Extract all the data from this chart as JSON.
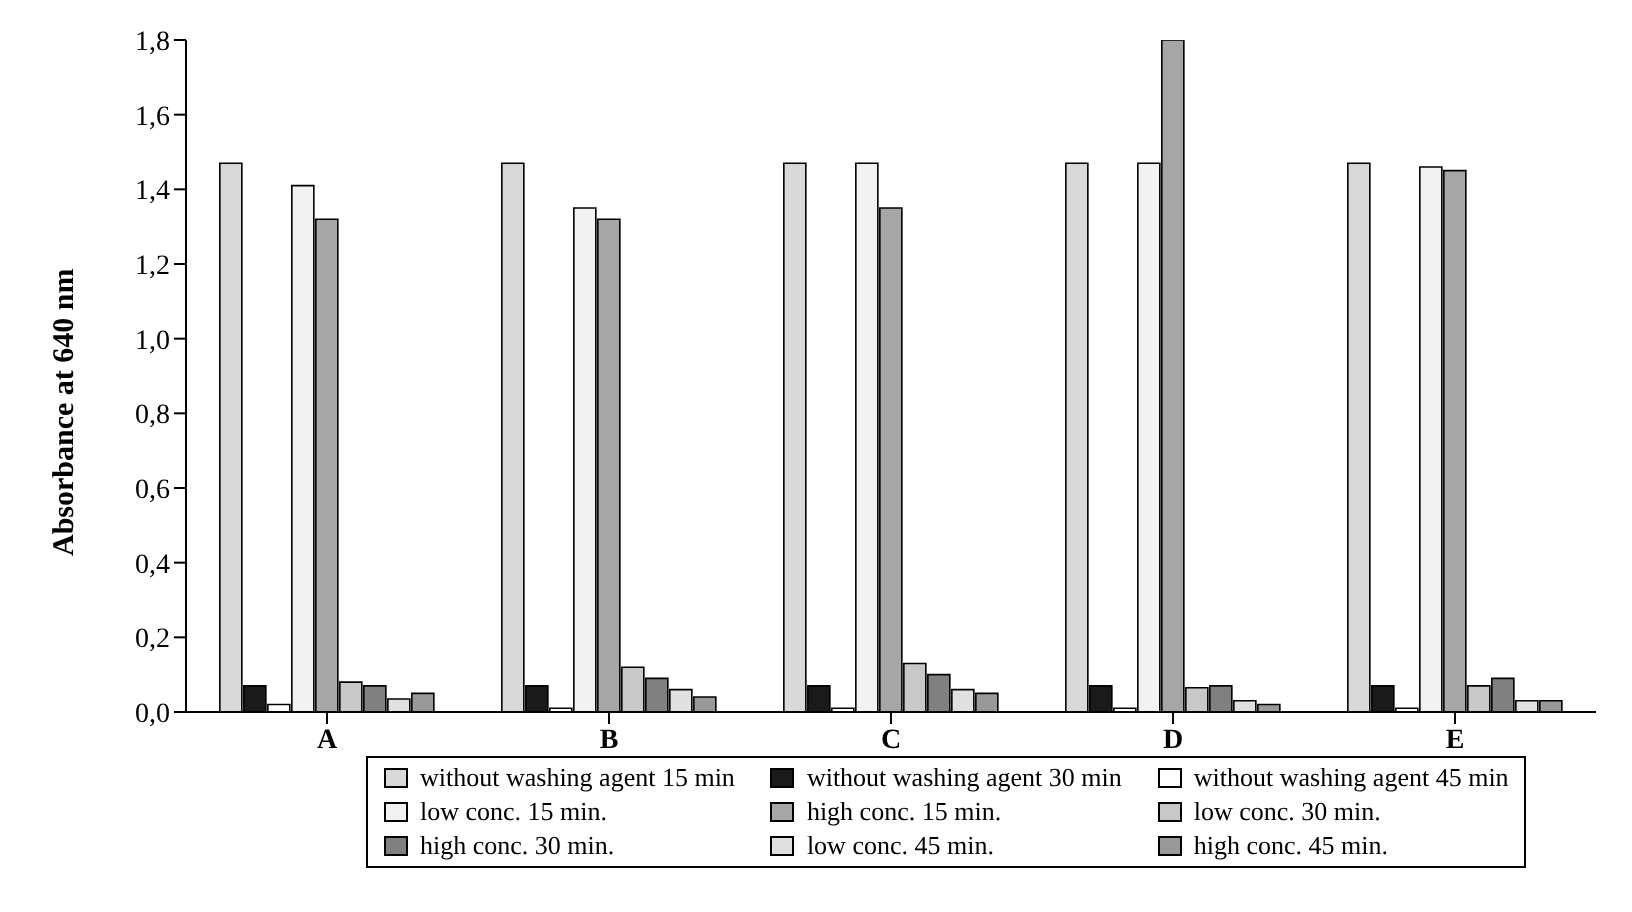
{
  "chart_data": {
    "type": "bar",
    "ylabel": "Absorbance at 640 nm",
    "categories": [
      "A",
      "B",
      "C",
      "D",
      "E"
    ],
    "ylim": [
      0,
      1.8
    ],
    "yticks": [
      {
        "value": 0,
        "label": "0,0"
      },
      {
        "value": 0.2,
        "label": "0,2"
      },
      {
        "value": 0.4,
        "label": "0,4"
      },
      {
        "value": 0.6,
        "label": "0,6"
      },
      {
        "value": 0.8,
        "label": "0,8"
      },
      {
        "value": 1,
        "label": "1,0"
      },
      {
        "value": 1.2,
        "label": "1,2"
      },
      {
        "value": 1.4,
        "label": "1,4"
      },
      {
        "value": 1.6,
        "label": "1,6"
      },
      {
        "value": 1.8,
        "label": "1,8"
      }
    ],
    "legend": "bottom",
    "series": [
      {
        "name": "without washing agent 15 min",
        "color": "#d9d9d9",
        "values": [
          1.47,
          1.47,
          1.47,
          1.47,
          1.47
        ]
      },
      {
        "name": "without washing agent 30 min",
        "color": "#1a1a1a",
        "values": [
          0.07,
          0.07,
          0.07,
          0.07,
          0.07
        ]
      },
      {
        "name": "without washing agent 45 min",
        "color": "#ffffff",
        "values": [
          0.02,
          0.01,
          0.01,
          0.01,
          0.01
        ]
      },
      {
        "name": "low conc. 15 min.",
        "color": "#f2f2f2",
        "values": [
          1.41,
          1.35,
          1.47,
          1.47,
          1.46
        ]
      },
      {
        "name": "high conc. 15 min.",
        "color": "#a6a6a6",
        "values": [
          1.32,
          1.32,
          1.35,
          1.8,
          1.45
        ]
      },
      {
        "name": "low conc. 30 min.",
        "color": "#c8c8c8",
        "values": [
          0.08,
          0.12,
          0.13,
          0.065,
          0.07
        ]
      },
      {
        "name": "high conc. 30 min.",
        "color": "#808080",
        "values": [
          0.07,
          0.09,
          0.1,
          0.07,
          0.09
        ]
      },
      {
        "name": "low conc. 45 min.",
        "color": "#e0e0e0",
        "values": [
          0.035,
          0.06,
          0.06,
          0.03,
          0.03
        ]
      },
      {
        "name": "high conc. 45 min.",
        "color": "#999999",
        "values": [
          0.05,
          0.04,
          0.05,
          0.02,
          0.03
        ]
      }
    ]
  }
}
